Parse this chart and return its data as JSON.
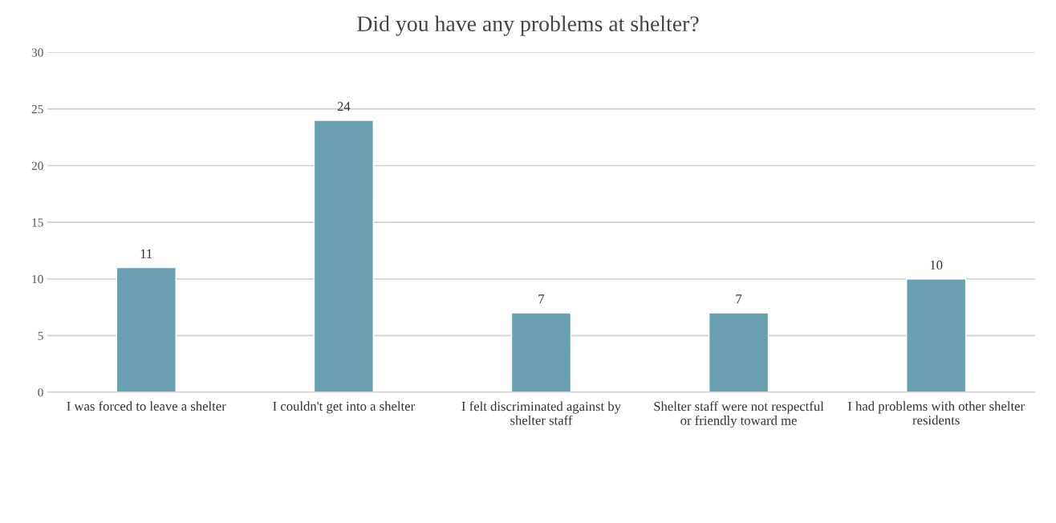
{
  "chart_data": {
    "type": "bar",
    "title": "Did you have any problems at shelter?",
    "categories": [
      "I was forced to leave a shelter",
      "I couldn't get into a shelter",
      "I felt discriminated against by shelter staff",
      "Shelter staff were not respectful or friendly toward me",
      "I had problems with other shelter residents"
    ],
    "values": [
      11,
      24,
      7,
      7,
      10
    ],
    "color": "#6a9fb0",
    "ylim": [
      0,
      30
    ],
    "yticks": [
      0,
      5,
      10,
      15,
      20,
      25,
      30
    ],
    "grid": "y",
    "data_labels": true
  }
}
